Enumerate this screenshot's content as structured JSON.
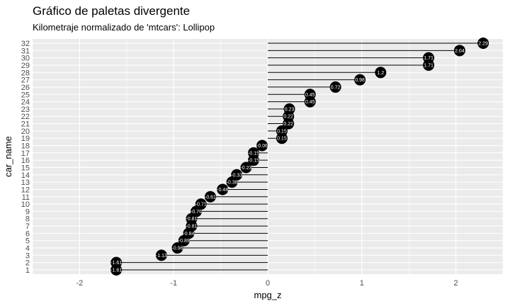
{
  "chart_data": {
    "type": "lollipop",
    "title": "Gráfico de paletas divergente",
    "subtitle": "Kilometraje normalizado de 'mtcars': Lollipop",
    "xlabel": "mpg_z",
    "ylabel": "car_name",
    "xlim": [
      -2.5,
      2.5
    ],
    "x_ticks": [
      -2,
      -1,
      0,
      1,
      2
    ],
    "grid": true,
    "categories": [
      "1",
      "2",
      "3",
      "4",
      "5",
      "6",
      "7",
      "8",
      "9",
      "10",
      "11",
      "12",
      "13",
      "14",
      "15",
      "16",
      "17",
      "18",
      "19",
      "20",
      "21",
      "22",
      "23",
      "24",
      "25",
      "26",
      "27",
      "28",
      "29",
      "30",
      "31",
      "32"
    ],
    "values": [
      -1.61,
      -1.61,
      -1.13,
      -0.96,
      -0.89,
      -0.84,
      -0.81,
      -0.81,
      -0.76,
      -0.71,
      -0.61,
      -0.48,
      -0.38,
      -0.33,
      -0.23,
      -0.15,
      -0.15,
      -0.06,
      0.15,
      0.15,
      0.22,
      0.22,
      0.23,
      0.45,
      0.45,
      0.72,
      0.98,
      1.2,
      1.71,
      1.71,
      2.04,
      2.29
    ],
    "labels": [
      "-1.61",
      "-1.61",
      "-1.13",
      "-0.96",
      "-0.89",
      "-0.84",
      "-0.81",
      "-0.81",
      "-0.76",
      "-0.71",
      "-0.61",
      "-0.48",
      "-0.38",
      "-0.33",
      "-0.23",
      "-0.15",
      "-0.15",
      "-0.06",
      "0.15",
      "0.15",
      "0.22",
      "0.22",
      "0.23",
      "0.45",
      "0.45",
      "0.72",
      "0.98",
      "1.2",
      "1.71",
      "1.71",
      "2.04",
      "2.29"
    ],
    "colors": {
      "panel": "#ebebeb",
      "grid": "#ffffff",
      "point": "#000000",
      "segment": "#000000",
      "label": "#ffffff"
    }
  }
}
